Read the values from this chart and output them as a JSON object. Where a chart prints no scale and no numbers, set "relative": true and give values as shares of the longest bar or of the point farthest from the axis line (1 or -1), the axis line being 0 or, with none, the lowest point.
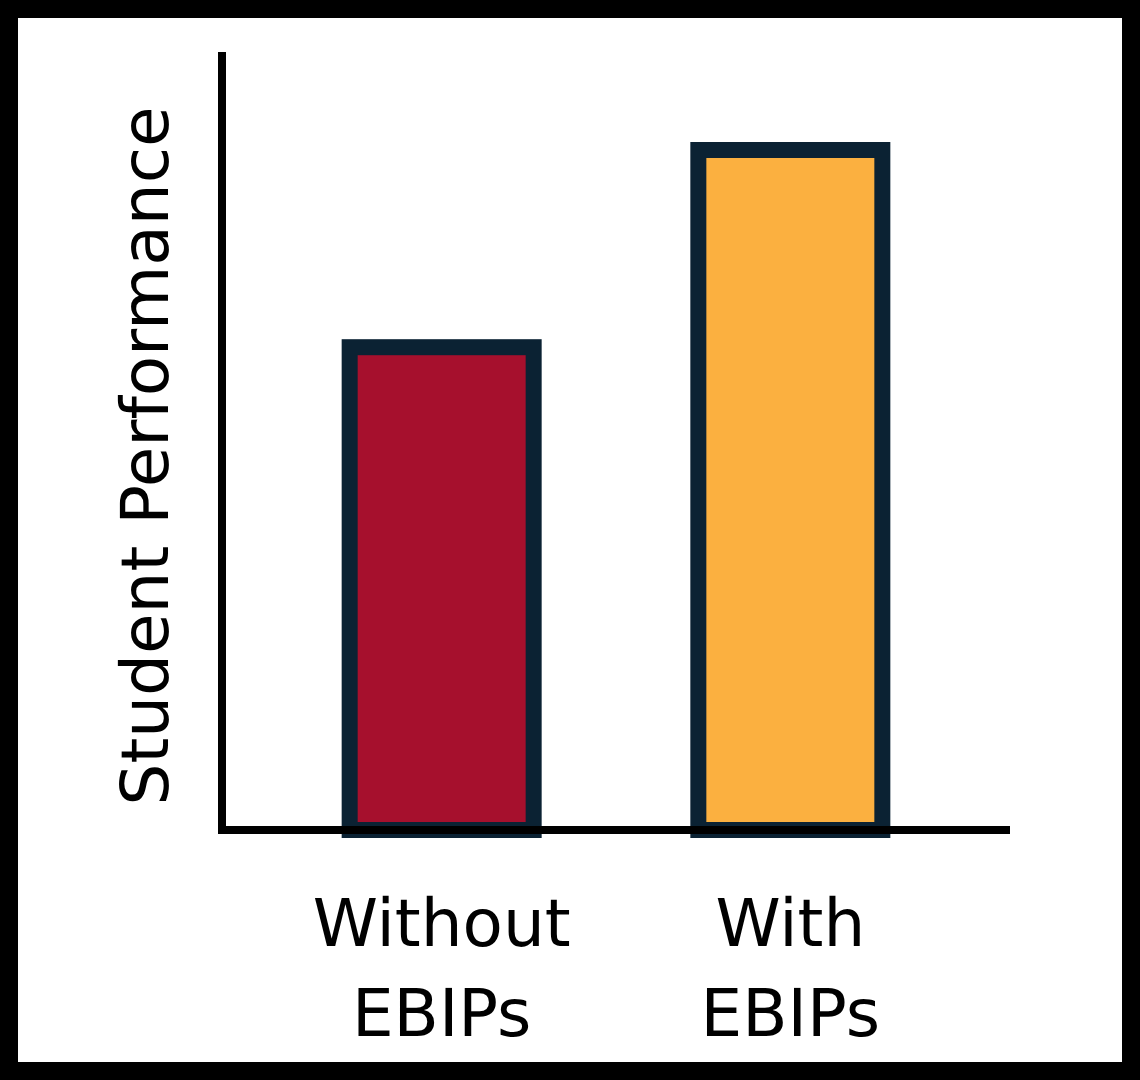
{
  "chart_data": {
    "type": "bar",
    "ylabel": "Student Performance",
    "categories": [
      "Without EBIPs",
      "With EBIPs"
    ],
    "values": [
      0.71,
      1
    ],
    "colors": [
      "#a6102d",
      "#fbb040"
    ],
    "relative": true
  }
}
